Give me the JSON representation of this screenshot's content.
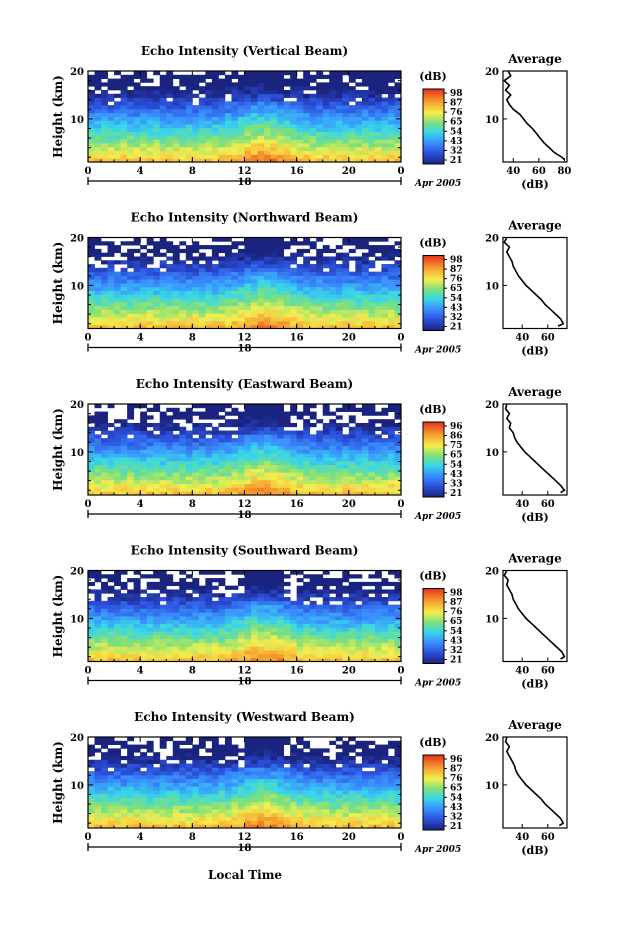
{
  "figure": {
    "xlabel": "Local Time",
    "date_label": "Apr 2005",
    "day_label": "18",
    "ylabel": "Height (km)",
    "colorbar_unit": "(dB)",
    "avg_title": "Average",
    "avg_xlabel": "(dB)"
  },
  "chart_data": [
    {
      "type": "heatmap",
      "title": "Echo Intensity (Vertical Beam)",
      "xlabel": "",
      "ylabel": "Height (km)",
      "xlim": [
        0,
        24
      ],
      "ylim": [
        1,
        20
      ],
      "xticks": [
        "0",
        "4",
        "8",
        "12",
        "16",
        "20",
        "0"
      ],
      "yticks": [
        "10",
        "20"
      ],
      "colorbar": {
        "label": "(dB)",
        "ticks": [
          "98",
          "87",
          "76",
          "65",
          "54",
          "43",
          "32",
          "21"
        ]
      },
      "average_profile": {
        "title": "Average",
        "xlabel": "(dB)",
        "xticks": [
          "40",
          "60",
          "80"
        ],
        "xlim": [
          32,
          82
        ],
        "yticks": [
          "10",
          "20"
        ],
        "ylim": [
          1,
          20
        ],
        "points": [
          [
            36,
            20
          ],
          [
            38,
            19
          ],
          [
            33,
            18
          ],
          [
            37,
            17
          ],
          [
            34,
            16
          ],
          [
            38,
            15
          ],
          [
            35,
            14
          ],
          [
            37,
            13
          ],
          [
            40,
            12
          ],
          [
            45,
            11
          ],
          [
            48,
            10
          ],
          [
            51,
            9
          ],
          [
            55,
            8
          ],
          [
            58,
            7
          ],
          [
            61,
            6
          ],
          [
            64,
            5
          ],
          [
            68,
            4
          ],
          [
            72,
            3
          ],
          [
            78,
            2
          ],
          [
            80,
            1.5
          ]
        ]
      }
    },
    {
      "type": "heatmap",
      "title": "Echo Intensity (Northward Beam)",
      "xlabel": "",
      "ylabel": "Height (km)",
      "xlim": [
        0,
        24
      ],
      "ylim": [
        1,
        20
      ],
      "xticks": [
        "0",
        "4",
        "8",
        "12",
        "16",
        "20",
        "0"
      ],
      "yticks": [
        "10",
        "20"
      ],
      "colorbar": {
        "label": "(dB)",
        "ticks": [
          "98",
          "87",
          "76",
          "65",
          "54",
          "43",
          "32",
          "21"
        ]
      },
      "average_profile": {
        "title": "Average",
        "xlabel": "(dB)",
        "xticks": [
          "40",
          "60"
        ],
        "xlim": [
          25,
          75
        ],
        "yticks": [
          "10",
          "20"
        ],
        "ylim": [
          1,
          20
        ],
        "points": [
          [
            28,
            20
          ],
          [
            26,
            19
          ],
          [
            30,
            18
          ],
          [
            28,
            17
          ],
          [
            30,
            16
          ],
          [
            32,
            15
          ],
          [
            33,
            14
          ],
          [
            35,
            13
          ],
          [
            37,
            12
          ],
          [
            40,
            11
          ],
          [
            43,
            10
          ],
          [
            47,
            9
          ],
          [
            51,
            8
          ],
          [
            55,
            7
          ],
          [
            58,
            6
          ],
          [
            62,
            5
          ],
          [
            66,
            4
          ],
          [
            70,
            3
          ],
          [
            72,
            2
          ],
          [
            68,
            1.5
          ]
        ]
      }
    },
    {
      "type": "heatmap",
      "title": "Echo Intensity (Eastward Beam)",
      "xlabel": "",
      "ylabel": "Height (km)",
      "xlim": [
        0,
        24
      ],
      "ylim": [
        1,
        20
      ],
      "xticks": [
        "0",
        "4",
        "8",
        "12",
        "16",
        "20",
        "0"
      ],
      "yticks": [
        "10",
        "20"
      ],
      "colorbar": {
        "label": "(dB)",
        "ticks": [
          "96",
          "86",
          "75",
          "65",
          "54",
          "43",
          "33",
          "21"
        ]
      },
      "average_profile": {
        "title": "Average",
        "xlabel": "(dB)",
        "xticks": [
          "40",
          "60"
        ],
        "xlim": [
          25,
          75
        ],
        "yticks": [
          "10",
          "20"
        ],
        "ylim": [
          1,
          20
        ],
        "points": [
          [
            28,
            20
          ],
          [
            27,
            19
          ],
          [
            30,
            18
          ],
          [
            28,
            17
          ],
          [
            31,
            16
          ],
          [
            30,
            15
          ],
          [
            33,
            14
          ],
          [
            34,
            13
          ],
          [
            36,
            12
          ],
          [
            39,
            11
          ],
          [
            42,
            10
          ],
          [
            46,
            9
          ],
          [
            50,
            8
          ],
          [
            54,
            7
          ],
          [
            58,
            6
          ],
          [
            62,
            5
          ],
          [
            66,
            4
          ],
          [
            70,
            3
          ],
          [
            73,
            2
          ],
          [
            70,
            1.5
          ]
        ]
      }
    },
    {
      "type": "heatmap",
      "title": "Echo Intensity (Southward Beam)",
      "xlabel": "",
      "ylabel": "Height (km)",
      "xlim": [
        0,
        24
      ],
      "ylim": [
        1,
        20
      ],
      "xticks": [
        "0",
        "4",
        "8",
        "12",
        "16",
        "20",
        "0"
      ],
      "yticks": [
        "10",
        "20"
      ],
      "colorbar": {
        "label": "(dB)",
        "ticks": [
          "98",
          "87",
          "76",
          "65",
          "54",
          "43",
          "32",
          "21"
        ]
      },
      "average_profile": {
        "title": "Average",
        "xlabel": "(dB)",
        "xticks": [
          "40",
          "60"
        ],
        "xlim": [
          25,
          75
        ],
        "yticks": [
          "10",
          "20"
        ],
        "ylim": [
          1,
          20
        ],
        "points": [
          [
            28,
            20
          ],
          [
            26,
            19
          ],
          [
            29,
            18
          ],
          [
            28,
            17
          ],
          [
            30,
            16
          ],
          [
            32,
            15
          ],
          [
            33,
            14
          ],
          [
            35,
            13
          ],
          [
            37,
            12
          ],
          [
            40,
            11
          ],
          [
            43,
            10
          ],
          [
            47,
            9
          ],
          [
            51,
            8
          ],
          [
            55,
            7
          ],
          [
            59,
            6
          ],
          [
            63,
            5
          ],
          [
            67,
            4
          ],
          [
            71,
            3
          ],
          [
            73,
            2
          ],
          [
            70,
            1.5
          ]
        ]
      }
    },
    {
      "type": "heatmap",
      "title": "Echo Intensity (Westward Beam)",
      "xlabel": "Local Time",
      "ylabel": "Height (km)",
      "xlim": [
        0,
        24
      ],
      "ylim": [
        1,
        20
      ],
      "xticks": [
        "0",
        "4",
        "8",
        "12",
        "16",
        "20",
        "0"
      ],
      "yticks": [
        "10",
        "20"
      ],
      "colorbar": {
        "label": "(dB)",
        "ticks": [
          "96",
          "87",
          "76",
          "65",
          "54",
          "43",
          "32",
          "21"
        ]
      },
      "average_profile": {
        "title": "Average",
        "xlabel": "(dB)",
        "xticks": [
          "40",
          "60"
        ],
        "xlim": [
          25,
          75
        ],
        "yticks": [
          "10",
          "20"
        ],
        "ylim": [
          1,
          20
        ],
        "points": [
          [
            28,
            20
          ],
          [
            27,
            19
          ],
          [
            30,
            18
          ],
          [
            28,
            17
          ],
          [
            30,
            16
          ],
          [
            32,
            15
          ],
          [
            34,
            14
          ],
          [
            35,
            13
          ],
          [
            37,
            12
          ],
          [
            40,
            11
          ],
          [
            43,
            10
          ],
          [
            47,
            9
          ],
          [
            51,
            8
          ],
          [
            55,
            7
          ],
          [
            58,
            6
          ],
          [
            62,
            5
          ],
          [
            66,
            4
          ],
          [
            70,
            3
          ],
          [
            72,
            2
          ],
          [
            69,
            1.5
          ]
        ]
      }
    }
  ]
}
